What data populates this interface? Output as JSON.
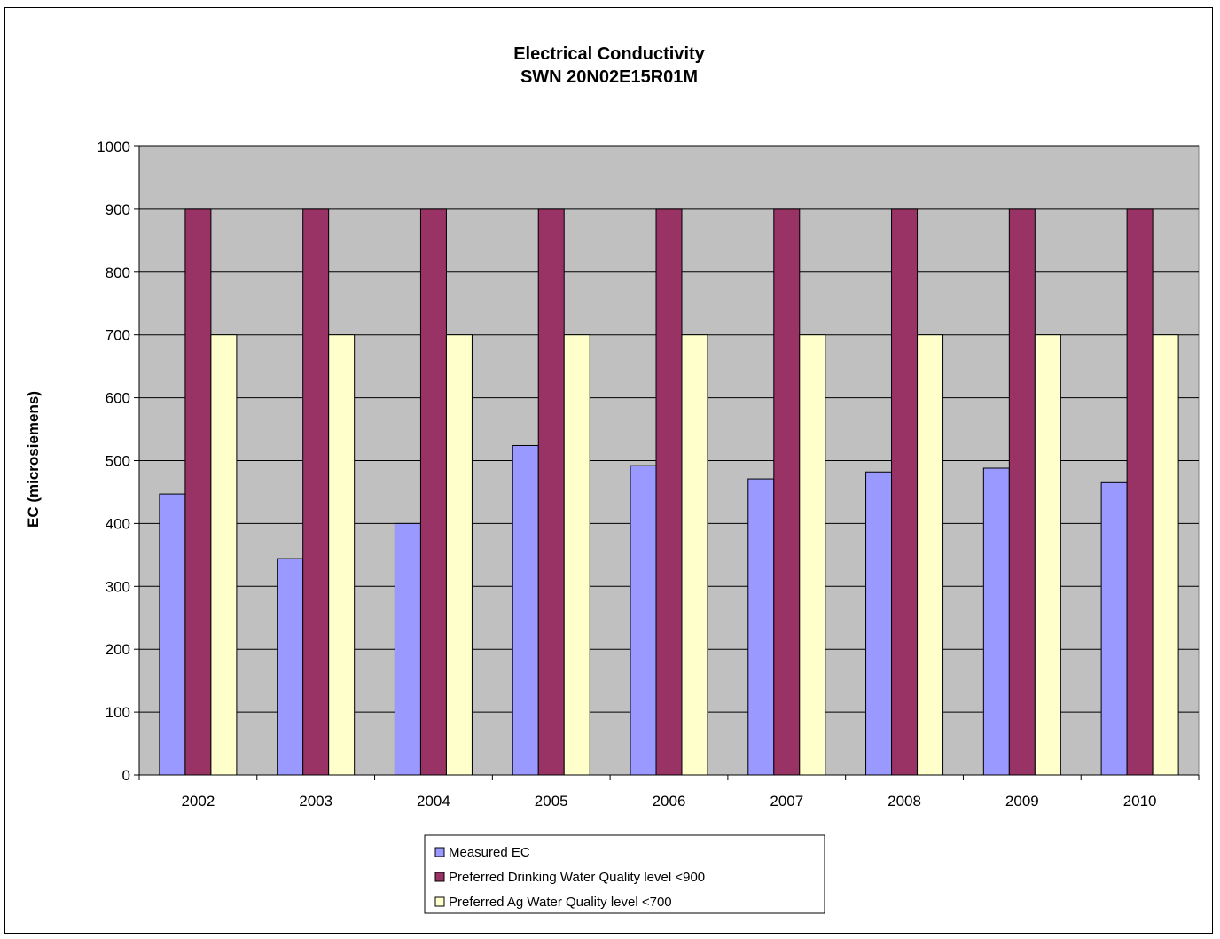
{
  "chart_data": {
    "type": "bar",
    "title": "Electrical Conductivity",
    "subtitle": "SWN 20N02E15R01M",
    "xlabel": "",
    "ylabel": "EC (microsiemens)",
    "ylim": [
      0,
      1000
    ],
    "yticks": [
      0,
      100,
      200,
      300,
      400,
      500,
      600,
      700,
      800,
      900,
      1000
    ],
    "grid": true,
    "legend_position": "bottom",
    "categories": [
      "2002",
      "2003",
      "2004",
      "2005",
      "2006",
      "2007",
      "2008",
      "2009",
      "2010"
    ],
    "series": [
      {
        "name": "Measured EC",
        "color": "#9999ff",
        "values": [
          447,
          344,
          400,
          524,
          492,
          471,
          482,
          488,
          465
        ]
      },
      {
        "name": "Preferred Drinking Water Quality level <900",
        "color": "#993366",
        "values": [
          900,
          900,
          900,
          900,
          900,
          900,
          900,
          900,
          900
        ]
      },
      {
        "name": "Preferred Ag Water Quality level <700",
        "color": "#ffffcc",
        "values": [
          700,
          700,
          700,
          700,
          700,
          700,
          700,
          700,
          700
        ]
      }
    ],
    "plot_background": "#c0c0c0"
  }
}
